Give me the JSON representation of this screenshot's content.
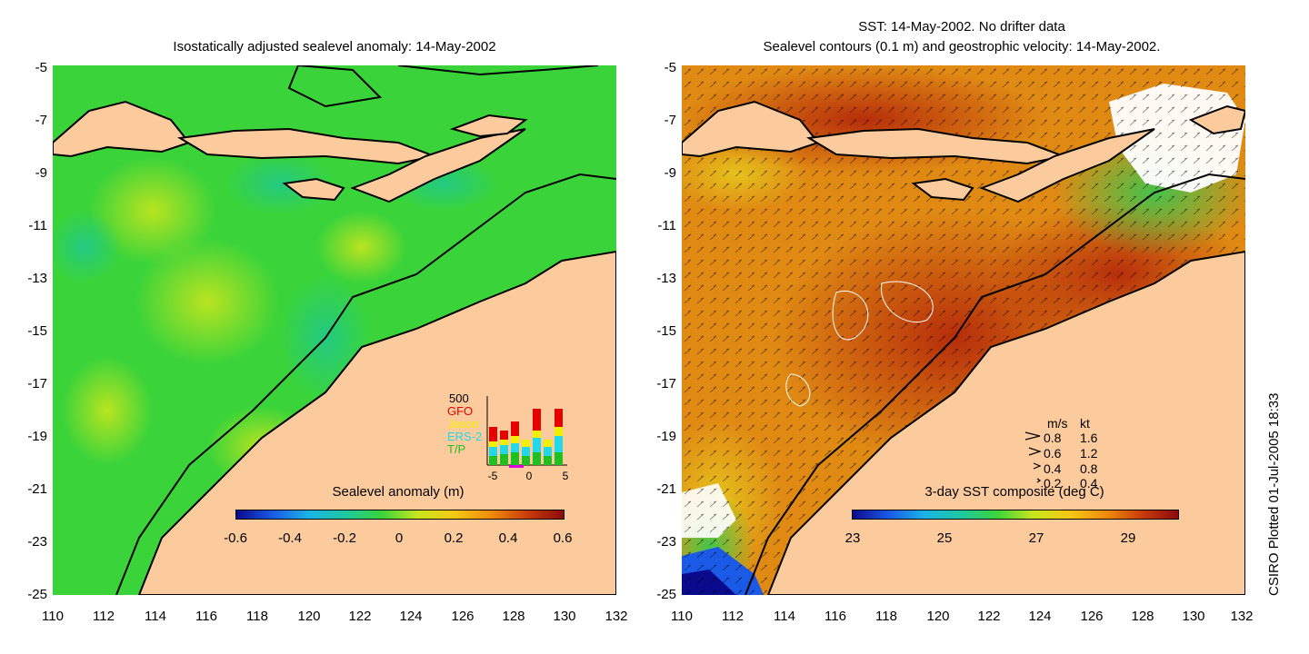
{
  "left_panel": {
    "title": "Isostatically adjusted sealevel anomaly: 14-May-2002",
    "colorbar": {
      "label": "Sealevel anomaly (m)",
      "ticks": [
        "-0.6",
        "-0.4",
        "-0.2",
        "0",
        "0.2",
        "0.4",
        "0.6"
      ]
    },
    "inset": {
      "scale_label": "500",
      "legend": [
        "GFO",
        "Jason",
        "ERS-2",
        "T/P"
      ],
      "x_ticks": [
        "-5",
        "0",
        "5"
      ],
      "colors": {
        "GFO": "#e60000",
        "Jason": "#f0f000",
        "ERS-2": "#20d8e8",
        "T/P": "#20c020"
      }
    }
  },
  "right_panel": {
    "title_line1": "SST: 14-May-2002. No drifter data",
    "title_line2": "Sealevel contours (0.1 m) and geostrophic velocity: 14-May-2002.",
    "colorbar": {
      "label": "3-day SST composite (deg C)",
      "ticks": [
        "23",
        "25",
        "27",
        "29"
      ]
    },
    "velocity_legend": {
      "header_ms": "m/s",
      "header_kt": "kt",
      "rows": [
        {
          "ms": "0.8",
          "kt": "1.6"
        },
        {
          "ms": "0.6",
          "kt": "1.2"
        },
        {
          "ms": "0.4",
          "kt": "0.8"
        },
        {
          "ms": "0.2",
          "kt": "0.4"
        }
      ]
    }
  },
  "axes": {
    "y_ticks": [
      "-5",
      "-7",
      "-9",
      "-11",
      "-13",
      "-15",
      "-17",
      "-19",
      "-21",
      "-23",
      "-25"
    ],
    "x_ticks": [
      "110",
      "112",
      "114",
      "116",
      "118",
      "120",
      "122",
      "124",
      "126",
      "128",
      "130",
      "132"
    ]
  },
  "credit": "CSIRO Plotted 01-Jul-2005 18:33",
  "colors": {
    "land": "#fccb9d",
    "coast": "#000000"
  }
}
